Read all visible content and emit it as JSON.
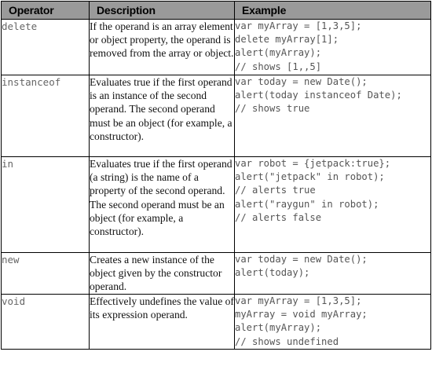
{
  "headers": {
    "operator": "Operator",
    "description": "Description",
    "example": "Example"
  },
  "rows": [
    {
      "operator": "delete",
      "description": "If the operand is an array element or object property, the operand is removed from the array or object.",
      "example": [
        "var myArray = [1,3,5];",
        "delete myArray[1];",
        "alert(myArray);",
        "// shows [1,,5]"
      ]
    },
    {
      "operator": "instanceof",
      "description": "Evaluates true if the first operand is an instance of the second operand. The second operand must be an object (for example, a constructor).",
      "example": [
        "var today = new Date();",
        "alert(today instanceof Date);",
        "// shows true"
      ]
    },
    {
      "operator": "in",
      "description": "Evaluates true if the first operand (a string) is the name of a property of the second operand. The second operand must be an object (for example, a constructor).",
      "example": [
        "var robot = {jetpack:true};",
        "alert(\"jetpack\" in robot);",
        "// alerts true",
        "alert(\"raygun\" in robot);",
        "// alerts false"
      ]
    },
    {
      "operator": "new",
      "description": "Creates a new instance of the object given by the constructor operand.",
      "example": [
        "var today = new Date();",
        "alert(today);"
      ]
    },
    {
      "operator": "void",
      "description": "Effectively undefines the value of its expression operand.",
      "example": [
        "var myArray = [1,3,5];",
        "myArray = void myArray;",
        "alert(myArray);",
        "// shows undefined"
      ]
    }
  ]
}
